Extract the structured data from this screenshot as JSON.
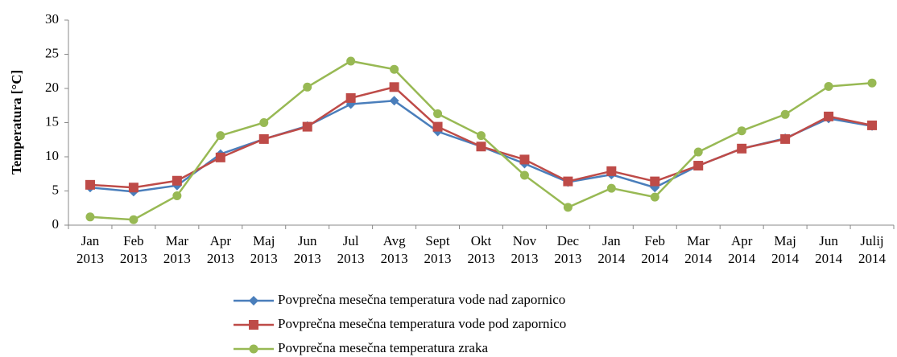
{
  "chart_data": {
    "type": "line",
    "y_label": "Temperatura  [°C]",
    "categories": [
      [
        "Jan",
        "2013"
      ],
      [
        "Feb",
        "2013"
      ],
      [
        "Mar",
        "2013"
      ],
      [
        "Apr",
        "2013"
      ],
      [
        "Maj",
        "2013"
      ],
      [
        "Jun",
        "2013"
      ],
      [
        "Jul",
        "2013"
      ],
      [
        "Avg",
        "2013"
      ],
      [
        "Sept",
        "2013"
      ],
      [
        "Okt",
        "2013"
      ],
      [
        "Nov",
        "2013"
      ],
      [
        "Dec",
        "2013"
      ],
      [
        "Jan",
        "2014"
      ],
      [
        "Feb",
        "2014"
      ],
      [
        "Mar",
        "2014"
      ],
      [
        "Apr",
        "2014"
      ],
      [
        "Maj",
        "2014"
      ],
      [
        "Jun",
        "2014"
      ],
      [
        "Julij",
        "2014"
      ]
    ],
    "series": [
      {
        "name": "Povprečna mesečna temperatura vode nad zapornico",
        "color": "#4a7ebb",
        "marker": "diamond",
        "values": [
          5.5,
          4.9,
          5.8,
          10.4,
          12.6,
          14.5,
          17.7,
          18.2,
          13.7,
          11.5,
          9.0,
          6.3,
          7.4,
          5.5,
          8.7,
          11.2,
          12.7,
          15.6,
          14.5
        ]
      },
      {
        "name": "Povprečna mesečna temperatura vode pod zapornico",
        "color": "#be4b48",
        "marker": "square",
        "values": [
          5.9,
          5.5,
          6.5,
          9.9,
          12.6,
          14.4,
          18.6,
          20.2,
          14.4,
          11.5,
          9.6,
          6.4,
          7.9,
          6.4,
          8.7,
          11.2,
          12.6,
          15.9,
          14.6
        ]
      },
      {
        "name": "Povprečna mesečna temperatura zraka",
        "color": "#98b954",
        "marker": "circle",
        "values": [
          1.2,
          0.8,
          4.3,
          13.1,
          15.0,
          20.2,
          24.0,
          22.8,
          16.3,
          13.1,
          7.3,
          2.6,
          5.4,
          4.1,
          10.7,
          13.8,
          16.2,
          20.3,
          20.8
        ]
      }
    ],
    "ylim": [
      0,
      30
    ],
    "yticks": [
      0,
      5,
      10,
      15,
      20,
      25,
      30
    ],
    "grid": false
  }
}
